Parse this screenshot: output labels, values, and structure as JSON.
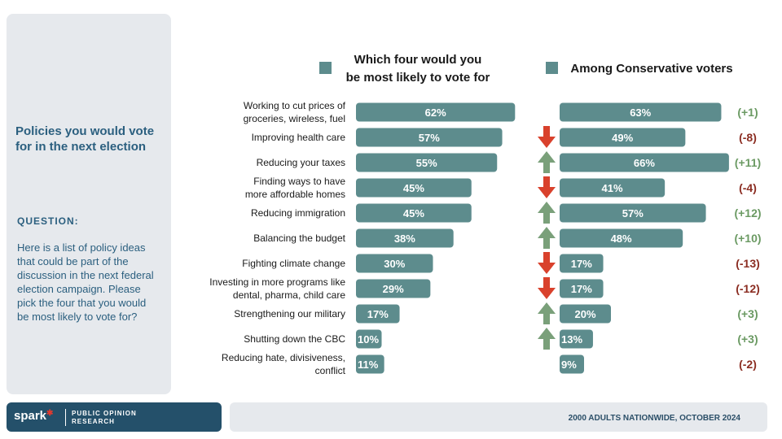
{
  "sidebar": {
    "title": "Policies you would vote for in the next election",
    "question_label": "QUESTION:",
    "question_text": "Here is a list of policy ideas that could be part of the discussion in the next federal election campaign. Please pick the four that you would be most likely to vote for?"
  },
  "logo": {
    "name": "spark",
    "sub": "PUBLIC OPINION RESEARCH"
  },
  "footer": {
    "text": "2000 ADULTS NATIONWIDE, OCTOBER 2024"
  },
  "colors": {
    "bar": "#5d8c8d",
    "up_arrow": "#7aa07a",
    "down_arrow": "#d9412c",
    "positive_change": "#6b9a63",
    "negative_change": "#8b2d22"
  },
  "chart_data": {
    "type": "bar",
    "categories": [
      "Working to cut prices of groceries, wireless, fuel",
      "Improving health care",
      "Reducing your taxes",
      "Finding ways to have more affordable homes",
      "Reducing immigration",
      "Balancing the budget",
      "Fighting climate change",
      "Investing in more programs like dental, pharma, child care",
      "Strengthening our military",
      "Shutting down the CBC",
      "Reducing hate, divisiveness, conflict"
    ],
    "category_lines": [
      [
        "Working to cut prices of",
        "groceries, wireless, fuel"
      ],
      [
        "Improving health care"
      ],
      [
        "Reducing your taxes"
      ],
      [
        "Finding ways to have",
        "more affordable homes"
      ],
      [
        "Reducing immigration"
      ],
      [
        "Balancing the budget"
      ],
      [
        "Fighting climate change"
      ],
      [
        "Investing in more programs like",
        "dental, pharma, child care"
      ],
      [
        "Strengthening our military"
      ],
      [
        "Shutting down the CBC"
      ],
      [
        "Reducing hate, divisiveness,",
        "conflict"
      ]
    ],
    "series": [
      {
        "name": "Which four would you be most likely to vote for",
        "name_lines": [
          "Which four would you",
          "be most likely to vote for"
        ],
        "values": [
          62,
          57,
          55,
          45,
          45,
          38,
          30,
          29,
          17,
          10,
          11
        ],
        "labels": [
          "62%",
          "57%",
          "55%",
          "45%",
          "45%",
          "38%",
          "30%",
          "29%",
          "17%",
          "10%",
          "11%"
        ]
      },
      {
        "name": "Among Conservative voters",
        "values": [
          63,
          49,
          66,
          41,
          57,
          48,
          17,
          17,
          20,
          13,
          9
        ],
        "labels": [
          "63%",
          "49%",
          "66%",
          "41%",
          "57%",
          "48%",
          "17%",
          "17%",
          "20%",
          "13%",
          "9%"
        ]
      }
    ],
    "changes": [
      "(+1)",
      "(-8)",
      "(+11)",
      "(-4)",
      "(+12)",
      "(+10)",
      "(-13)",
      "(-12)",
      "(+3)",
      "(+3)",
      "(-2)"
    ],
    "arrows": [
      "none",
      "down",
      "up",
      "down",
      "up",
      "up",
      "down",
      "down",
      "up",
      "up",
      "none"
    ],
    "unit": "%"
  }
}
